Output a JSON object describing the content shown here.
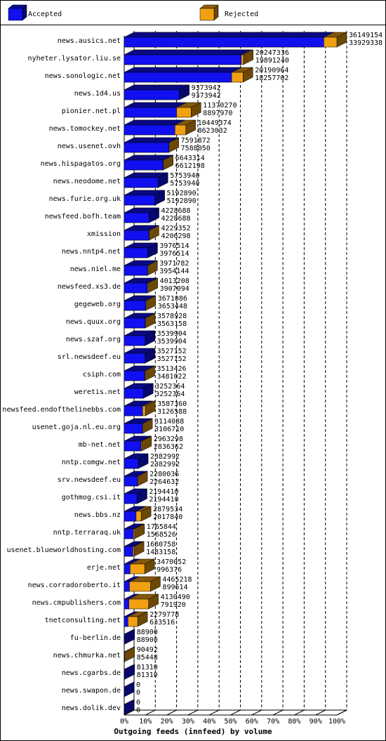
{
  "chart_data": {
    "type": "bar",
    "orientation": "horizontal",
    "stacked": false,
    "x_label": "Outgoing feeds (innfeed) by volume",
    "categories": [
      "news.ausics.net",
      "nyheter.lysator.liu.se",
      "news.sonologic.net",
      "news.1d4.us",
      "pionier.net.pl",
      "news.tomockey.net",
      "news.usenet.ovh",
      "news.hispagatos.org",
      "news.neodome.net",
      "news.furie.org.uk",
      "newsfeed.bofh.team",
      "xmission",
      "news.nntp4.net",
      "news.niel.me",
      "newsfeed.xs3.de",
      "gegeweb.org",
      "news.quux.org",
      "news.szaf.org",
      "srl.newsdeef.eu",
      "csiph.com",
      "weretis.net",
      "newsfeed.endofthelinebbs.com",
      "usenet.goja.nl.eu.org",
      "mb-net.net",
      "nntp.comgw.net",
      "srv.newsdeef.eu",
      "gothmog.csi.it",
      "news.bbs.nz",
      "nntp.terraraq.uk",
      "usenet.blueworldhosting.com",
      "erje.net",
      "news.corradoroberto.it",
      "news.cmpublishers.com",
      "tnetconsulting.net",
      "fu-berlin.de",
      "news.chmurka.net",
      "news.cgarbs.de",
      "news.swapon.de",
      "news.dolik.dev"
    ],
    "series": [
      {
        "name": "Rejected",
        "color": "#f0a010",
        "values": [
          36149154,
          20247336,
          20190964,
          9373942,
          11370270,
          10449374,
          7591872,
          6643314,
          5753940,
          5192890,
          4228688,
          4229352,
          3976514,
          3971782,
          4013208,
          3671086,
          3578928,
          3539904,
          3527152,
          3513426,
          3252364,
          3587360,
          3114088,
          2963298,
          2382992,
          2280036,
          2194410,
          2879534,
          1765844,
          1680758,
          3470052,
          4465218,
          4130490,
          2279778,
          88900,
          90492,
          81310,
          0,
          0
        ]
      },
      {
        "name": "Accepted",
        "color": "#1010f0",
        "values": [
          33929338,
          19891240,
          18257702,
          9373942,
          8897970,
          8623032,
          7588050,
          6612198,
          5753940,
          5192890,
          4228688,
          4206298,
          3976514,
          3954144,
          3907094,
          3653448,
          3563158,
          3539904,
          3527152,
          3481022,
          3252364,
          3126588,
          3106710,
          2836362,
          2382992,
          2264632,
          2194410,
          2017840,
          1568526,
          1483158,
          996376,
          899614,
          791920,
          633516,
          88900,
          85448,
          81310,
          0,
          0
        ]
      }
    ],
    "xlim": [
      0,
      36149154
    ],
    "xticks": [
      {
        "value": 0,
        "label": "0%"
      },
      {
        "value": 3614915.4,
        "label": "10%"
      },
      {
        "value": 7229830.8,
        "label": "20%"
      },
      {
        "value": 10844746.2,
        "label": "30%"
      },
      {
        "value": 14459661.6,
        "label": "40%"
      },
      {
        "value": 18074577,
        "label": "50%"
      },
      {
        "value": 21689492.4,
        "label": "60%"
      },
      {
        "value": 25304407.8,
        "label": "70%"
      },
      {
        "value": 28919323.2,
        "label": "80%"
      },
      {
        "value": 32534238.6,
        "label": "90%"
      },
      {
        "value": 36149154,
        "label": "100%"
      }
    ],
    "grid": true
  }
}
